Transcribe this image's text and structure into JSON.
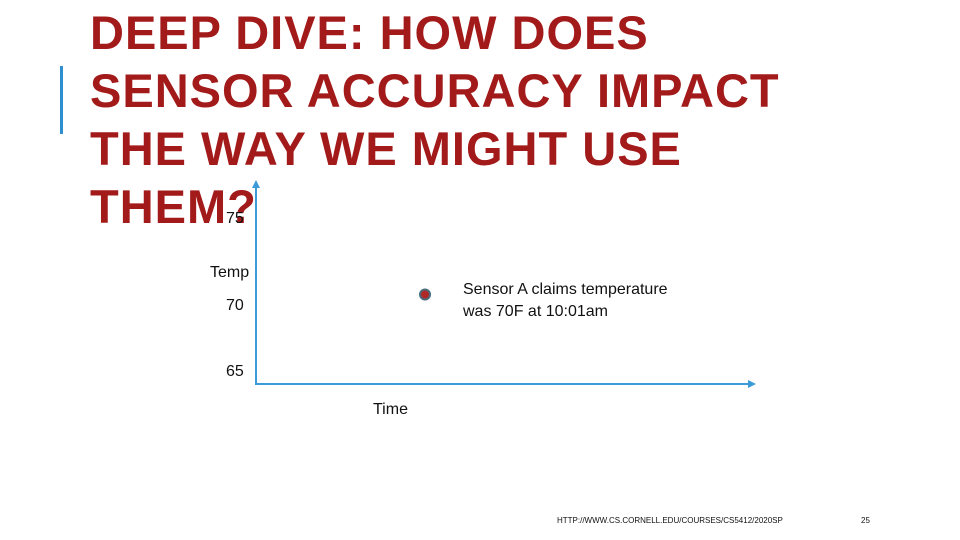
{
  "title_lines": [
    "DEEP DIVE: HOW DOES",
    "SENSOR ACCURACY IMPACT",
    "THE WAY WE MIGHT USE",
    "THEM?"
  ],
  "colors": {
    "title": "#a31a1a",
    "accent": "#2f8fce",
    "axis": "#3a9bd8",
    "point_fill": "#b02828",
    "point_stroke": "#4a6b7a"
  },
  "chart_data": {
    "type": "scatter",
    "xlabel": "Time",
    "ylabel": "Temp",
    "y_ticks": [
      "75",
      "70",
      "65"
    ],
    "ylim": [
      65,
      75
    ],
    "points": [
      {
        "x": "10:01am",
        "y": 70
      }
    ],
    "annotation": [
      "Sensor A claims temperature",
      "was 70F at 10:01am"
    ]
  },
  "footer": {
    "url": "HTTP://WWW.CS.CORNELL.EDU/COURSES/CS5412/2020SP",
    "page_number": "25"
  }
}
